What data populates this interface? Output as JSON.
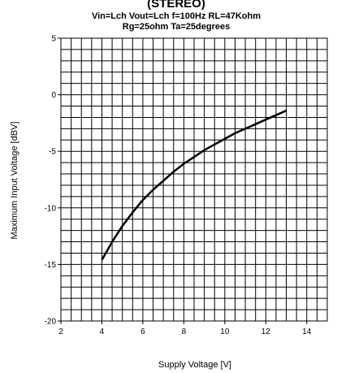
{
  "chart_data": {
    "type": "line",
    "title_lines": [
      "(STEREO)",
      "Vin=Lch Vout=Lch f=100Hz RL=47Kohm",
      "Rg=25ohm  Ta=25degrees"
    ],
    "xlabel": "Supply Voltage   [V]",
    "ylabel": "Maximum Input Voltage   [dBV]",
    "xlim": [
      2,
      15
    ],
    "ylim": [
      -20,
      5
    ],
    "x_ticks": [
      2,
      4,
      6,
      8,
      10,
      12,
      14
    ],
    "y_ticks": [
      5,
      0,
      -5,
      -10,
      -15,
      -20
    ],
    "x_tick_labels": [
      "2",
      "4",
      "6",
      "8",
      "10",
      "12",
      "14"
    ],
    "y_tick_labels": [
      "5",
      "0",
      "-5",
      "-10",
      "-15",
      "-20"
    ],
    "x_grid_step": 0.5,
    "y_grid_step": 1,
    "grid": true,
    "colors": {
      "line": "#000000",
      "grid": "#000000",
      "background": "#ffffff"
    },
    "series": [
      {
        "x": [
          4,
          4.5,
          5,
          5.5,
          6,
          6.5,
          7,
          7.5,
          8,
          8.5,
          9,
          9.5,
          10,
          10.5,
          11,
          11.5,
          12,
          12.5,
          13
        ],
        "y": [
          -14.6,
          -13.0,
          -11.6,
          -10.4,
          -9.3,
          -8.4,
          -7.6,
          -6.8,
          -6.1,
          -5.5,
          -4.9,
          -4.4,
          -3.9,
          -3.4,
          -3.0,
          -2.6,
          -2.2,
          -1.8,
          -1.4
        ]
      }
    ]
  }
}
